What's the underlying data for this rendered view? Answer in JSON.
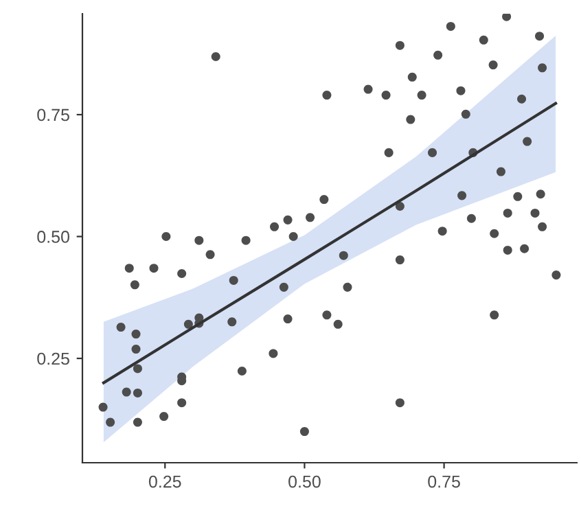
{
  "chart_data": {
    "type": "scatter",
    "grid": false,
    "legend": false,
    "xlim": [
      0.102,
      0.988
    ],
    "ylim": [
      0.036,
      0.957
    ],
    "xticks": [
      0.25,
      {
        "value": 0.5,
        "label": "0.50"
      },
      0.75
    ],
    "yticks": [
      0.25,
      {
        "value": 0.5,
        "label": "0.50"
      },
      0.75
    ],
    "series": [
      {
        "color": "#4d4d4d",
        "marker": "circle",
        "x": [
          0.139,
          0.152,
          0.171,
          0.181,
          0.186,
          0.196,
          0.198,
          0.198,
          0.201,
          0.201,
          0.201,
          0.23,
          0.248,
          0.252,
          0.28,
          0.28,
          0.28,
          0.28,
          0.292,
          0.311,
          0.311,
          0.311,
          0.331,
          0.341,
          0.37,
          0.373,
          0.388,
          0.395,
          0.444,
          0.446,
          0.463,
          0.47,
          0.47,
          0.48,
          0.5,
          0.51,
          0.535,
          0.54,
          0.54,
          0.56,
          0.57,
          0.577,
          0.614,
          0.646,
          0.651,
          0.671,
          0.671,
          0.671,
          0.671,
          0.69,
          0.693,
          0.71,
          0.729,
          0.739,
          0.747,
          0.762,
          0.78,
          0.782,
          0.789,
          0.799,
          0.802,
          0.821,
          0.838,
          0.84,
          0.84,
          0.852,
          0.862,
          0.864,
          0.864,
          0.882,
          0.889,
          0.894,
          0.899,
          0.913,
          0.921,
          0.926,
          0.923,
          0.926,
          0.951
        ],
        "values": [
          0.15,
          0.119,
          0.314,
          0.181,
          0.435,
          0.401,
          0.3,
          0.269,
          0.229,
          0.179,
          0.119,
          0.435,
          0.131,
          0.5,
          0.424,
          0.204,
          0.212,
          0.159,
          0.32,
          0.322,
          0.333,
          0.492,
          0.463,
          0.869,
          0.325,
          0.41,
          0.224,
          0.492,
          0.26,
          0.52,
          0.396,
          0.331,
          0.534,
          0.5,
          0.1,
          0.539,
          0.576,
          0.79,
          0.339,
          0.32,
          0.461,
          0.396,
          0.802,
          0.79,
          0.672,
          0.562,
          0.892,
          0.452,
          0.159,
          0.74,
          0.827,
          0.79,
          0.672,
          0.872,
          0.511,
          0.931,
          0.799,
          0.584,
          0.751,
          0.537,
          0.672,
          0.903,
          0.852,
          0.506,
          0.339,
          0.633,
          0.951,
          0.548,
          0.472,
          0.582,
          0.782,
          0.475,
          0.695,
          0.548,
          0.911,
          0.846,
          0.587,
          0.52,
          0.421
        ]
      },
      {
        "type": "line",
        "color": "#333333",
        "marker": "none",
        "line_style": "solid",
        "x": [
          0.14,
          0.3,
          0.5,
          0.7,
          0.95
        ],
        "values": [
          0.2,
          0.313,
          0.453,
          0.594,
          0.773
        ],
        "lower": [
          0.078,
          0.233,
          0.403,
          0.524,
          0.632
        ],
        "upper": [
          0.325,
          0.393,
          0.503,
          0.664,
          0.912
        ]
      }
    ]
  }
}
